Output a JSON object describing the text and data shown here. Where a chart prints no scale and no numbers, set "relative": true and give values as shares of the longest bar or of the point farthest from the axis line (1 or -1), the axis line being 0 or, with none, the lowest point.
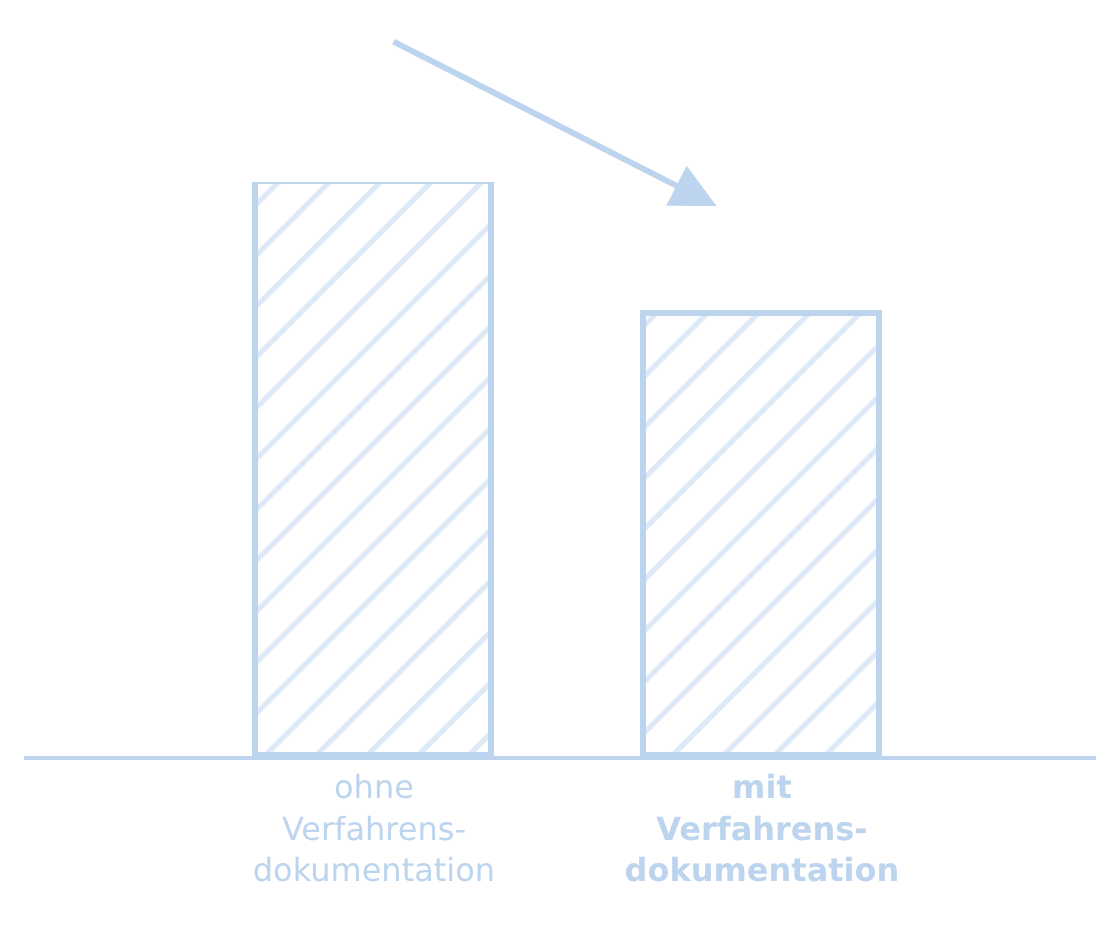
{
  "chart_data": {
    "type": "bar",
    "relative": true,
    "categories": [
      "ohne\nVerfahrens-\ndokumentation",
      "mit\nVerfahrens-\ndokumentation"
    ],
    "values": [
      1,
      0.77
    ],
    "color": "#bcd4ee"
  }
}
